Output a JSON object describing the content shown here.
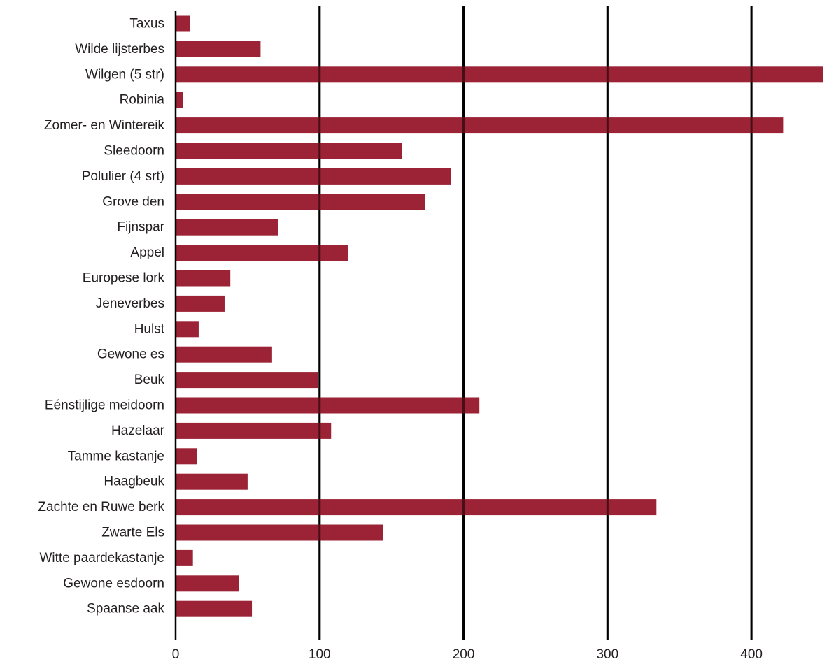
{
  "chart_data": {
    "type": "bar",
    "orientation": "horizontal",
    "title": "",
    "xlabel": "",
    "ylabel": "",
    "categories": [
      "Taxus",
      "Wilde lijsterbes",
      "Wilgen (5 str)",
      "Robinia",
      "Zomer- en Wintereik",
      "Sleedoorn",
      "Polulier (4 srt)",
      "Grove den",
      "Fijnspar",
      "Appel",
      "Europese lork",
      "Jeneverbes",
      "Hulst",
      "Gewone es",
      "Beuk",
      "Eénstijlige meidoorn",
      "Hazelaar",
      "Tamme kastanje",
      "Haagbeuk",
      "Zachte en Ruwe berk",
      "Zwarte Els",
      "Witte paardekastanje",
      "Gewone esdoorn",
      "Spaanse aak"
    ],
    "values": [
      10,
      59,
      450,
      5,
      422,
      157,
      191,
      173,
      71,
      120,
      38,
      34,
      16,
      67,
      99,
      211,
      108,
      15,
      50,
      334,
      144,
      12,
      44,
      53
    ],
    "xlim": [
      0,
      450
    ],
    "xticks": [
      0,
      100,
      200,
      300,
      400
    ],
    "xtick_labels": [
      "0",
      "100",
      "200",
      "300",
      "400"
    ],
    "grid": true,
    "legend": "none",
    "bar_color": "#9b2335"
  }
}
